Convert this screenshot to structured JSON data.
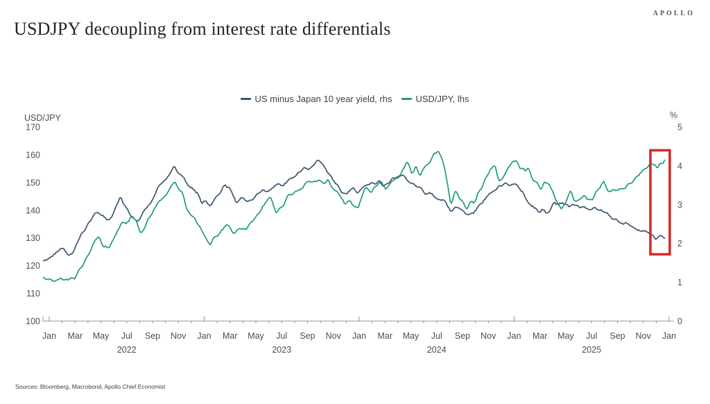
{
  "header": {
    "title": "USDJPY decoupling from interest rate differentials",
    "logo": "APOLLO"
  },
  "source": "Sources: Bloomberg, Macrobond, Apollo Chief Economist",
  "chart_data": {
    "type": "line",
    "title": "USDJPY decoupling from interest rate differentials",
    "grid": false,
    "legend_position": "top-center",
    "left_axis": {
      "label": "USD/JPY",
      "min": 100,
      "max": 170,
      "ticks": [
        170,
        160,
        150,
        140,
        130,
        120,
        110,
        100
      ]
    },
    "right_axis": {
      "label": "%",
      "min": 0,
      "max": 5,
      "ticks": [
        5,
        4,
        3,
        2,
        1,
        0
      ]
    },
    "x_axis": {
      "start": "Jan 2022",
      "end": "Jan 2026",
      "month_labels": [
        {
          "t": 0,
          "label": "Jan"
        },
        {
          "t": 2,
          "label": "Mar"
        },
        {
          "t": 4,
          "label": "May"
        },
        {
          "t": 6,
          "label": "Jul"
        },
        {
          "t": 8,
          "label": "Sep"
        },
        {
          "t": 10,
          "label": "Nov"
        },
        {
          "t": 12,
          "label": "Jan"
        },
        {
          "t": 14,
          "label": "Mar"
        },
        {
          "t": 16,
          "label": "May"
        },
        {
          "t": 18,
          "label": "Jul"
        },
        {
          "t": 20,
          "label": "Sep"
        },
        {
          "t": 22,
          "label": "Nov"
        },
        {
          "t": 24,
          "label": "Jan"
        },
        {
          "t": 26,
          "label": "Mar"
        },
        {
          "t": 28,
          "label": "May"
        },
        {
          "t": 30,
          "label": "Jul"
        },
        {
          "t": 32,
          "label": "Sep"
        },
        {
          "t": 34,
          "label": "Nov"
        },
        {
          "t": 36,
          "label": "Jan"
        },
        {
          "t": 38,
          "label": "Mar"
        },
        {
          "t": 40,
          "label": "May"
        },
        {
          "t": 42,
          "label": "Jul"
        },
        {
          "t": 44,
          "label": "Sep"
        },
        {
          "t": 46,
          "label": "Nov"
        },
        {
          "t": 48,
          "label": "Jan"
        }
      ],
      "year_labels": [
        {
          "t": 6,
          "label": "2022"
        },
        {
          "t": 18,
          "label": "2023"
        },
        {
          "t": 30,
          "label": "2024"
        },
        {
          "t": 42,
          "label": "2025"
        }
      ]
    },
    "legend": [
      {
        "label": "US minus Japan 10 year yield, rhs",
        "color": "#3e5471"
      },
      {
        "label": "USD/JPY, lhs",
        "color": "#1d9b77"
      }
    ],
    "series": [
      {
        "name": "US minus Japan 10 year yield",
        "axis": "rhs",
        "color": "#3e5471",
        "unit": "%",
        "points": [
          [
            -0.45,
            1.55
          ],
          [
            0,
            1.62
          ],
          [
            0.4,
            1.72
          ],
          [
            0.8,
            1.85
          ],
          [
            1.1,
            1.9
          ],
          [
            1.5,
            1.72
          ],
          [
            1.9,
            1.75
          ],
          [
            2.2,
            2.05
          ],
          [
            2.6,
            2.25
          ],
          [
            3.0,
            2.55
          ],
          [
            3.4,
            2.72
          ],
          [
            3.8,
            2.82
          ],
          [
            4.1,
            2.75
          ],
          [
            4.5,
            2.58
          ],
          [
            4.9,
            2.72
          ],
          [
            5.3,
            3.05
          ],
          [
            5.5,
            3.22
          ],
          [
            5.9,
            2.95
          ],
          [
            6.2,
            2.78
          ],
          [
            6.6,
            2.58
          ],
          [
            7.0,
            2.65
          ],
          [
            7.4,
            2.85
          ],
          [
            7.8,
            3.05
          ],
          [
            8.2,
            3.28
          ],
          [
            8.6,
            3.52
          ],
          [
            9.0,
            3.62
          ],
          [
            9.4,
            3.85
          ],
          [
            9.7,
            3.98
          ],
          [
            10.0,
            3.82
          ],
          [
            10.4,
            3.72
          ],
          [
            10.7,
            3.52
          ],
          [
            11.1,
            3.42
          ],
          [
            11.5,
            3.28
          ],
          [
            11.8,
            3.02
          ],
          [
            12.1,
            3.12
          ],
          [
            12.4,
            2.98
          ],
          [
            12.8,
            3.08
          ],
          [
            13.2,
            3.32
          ],
          [
            13.6,
            3.52
          ],
          [
            13.9,
            3.42
          ],
          [
            14.2,
            3.25
          ],
          [
            14.5,
            3.02
          ],
          [
            14.9,
            3.18
          ],
          [
            15.3,
            3.05
          ],
          [
            15.7,
            3.12
          ],
          [
            16.1,
            3.22
          ],
          [
            16.5,
            3.38
          ],
          [
            16.9,
            3.32
          ],
          [
            17.3,
            3.42
          ],
          [
            17.7,
            3.52
          ],
          [
            18.1,
            3.48
          ],
          [
            18.5,
            3.62
          ],
          [
            18.9,
            3.72
          ],
          [
            19.3,
            3.82
          ],
          [
            19.7,
            3.92
          ],
          [
            20.1,
            3.88
          ],
          [
            20.5,
            4.02
          ],
          [
            20.8,
            4.12
          ],
          [
            21.2,
            3.98
          ],
          [
            21.6,
            3.82
          ],
          [
            21.9,
            3.68
          ],
          [
            22.3,
            3.48
          ],
          [
            22.7,
            3.32
          ],
          [
            23.1,
            3.28
          ],
          [
            23.5,
            3.42
          ],
          [
            23.9,
            3.32
          ],
          [
            24.3,
            3.42
          ],
          [
            24.7,
            3.55
          ],
          [
            25.1,
            3.52
          ],
          [
            25.5,
            3.58
          ],
          [
            25.9,
            3.48
          ],
          [
            26.3,
            3.55
          ],
          [
            26.7,
            3.68
          ],
          [
            27.1,
            3.78
          ],
          [
            27.5,
            3.72
          ],
          [
            27.9,
            3.58
          ],
          [
            28.3,
            3.52
          ],
          [
            28.7,
            3.42
          ],
          [
            29.1,
            3.32
          ],
          [
            29.5,
            3.28
          ],
          [
            29.9,
            3.22
          ],
          [
            30.3,
            3.15
          ],
          [
            30.7,
            3.05
          ],
          [
            31.1,
            2.82
          ],
          [
            31.4,
            2.95
          ],
          [
            31.8,
            2.88
          ],
          [
            32.2,
            2.78
          ],
          [
            32.5,
            2.72
          ],
          [
            32.9,
            2.82
          ],
          [
            33.3,
            2.98
          ],
          [
            33.7,
            3.12
          ],
          [
            34.1,
            3.28
          ],
          [
            34.5,
            3.38
          ],
          [
            34.9,
            3.48
          ],
          [
            35.3,
            3.55
          ],
          [
            35.7,
            3.48
          ],
          [
            36.1,
            3.52
          ],
          [
            36.4,
            3.42
          ],
          [
            36.8,
            3.22
          ],
          [
            37.2,
            3.05
          ],
          [
            37.6,
            2.88
          ],
          [
            37.9,
            2.78
          ],
          [
            38.2,
            2.88
          ],
          [
            38.5,
            2.78
          ],
          [
            38.8,
            2.82
          ],
          [
            39.1,
            3.08
          ],
          [
            39.4,
            3.02
          ],
          [
            39.8,
            3.05
          ],
          [
            40.2,
            2.98
          ],
          [
            40.6,
            3.02
          ],
          [
            41.0,
            2.92
          ],
          [
            41.4,
            2.95
          ],
          [
            41.8,
            2.88
          ],
          [
            42.2,
            2.92
          ],
          [
            42.6,
            2.85
          ],
          [
            43.0,
            2.78
          ],
          [
            43.4,
            2.72
          ],
          [
            43.8,
            2.62
          ],
          [
            44.2,
            2.55
          ],
          [
            44.6,
            2.5
          ],
          [
            45.0,
            2.45
          ],
          [
            45.4,
            2.38
          ],
          [
            45.8,
            2.32
          ],
          [
            46.2,
            2.35
          ],
          [
            46.6,
            2.25
          ],
          [
            47.0,
            2.12
          ],
          [
            47.3,
            2.2
          ],
          [
            47.65,
            2.15
          ]
        ]
      },
      {
        "name": "USD/JPY",
        "axis": "lhs",
        "color": "#1d9b77",
        "unit": "JPY per USD",
        "points": [
          [
            -0.45,
            115.6
          ],
          [
            0,
            115.0
          ],
          [
            0.3,
            114.2
          ],
          [
            0.8,
            115.3
          ],
          [
            1.2,
            114.8
          ],
          [
            1.7,
            115.2
          ],
          [
            2.0,
            115.0
          ],
          [
            2.3,
            118.5
          ],
          [
            2.8,
            121.8
          ],
          [
            3.2,
            125.5
          ],
          [
            3.6,
            129.2
          ],
          [
            3.9,
            129.9
          ],
          [
            4.2,
            127.2
          ],
          [
            4.6,
            126.8
          ],
          [
            4.9,
            128.7
          ],
          [
            5.3,
            133.0
          ],
          [
            5.6,
            135.0
          ],
          [
            6.1,
            135.8
          ],
          [
            6.4,
            138.0
          ],
          [
            6.7,
            136.0
          ],
          [
            7.1,
            131.8
          ],
          [
            7.4,
            133.4
          ],
          [
            7.8,
            137.5
          ],
          [
            8.1,
            140.2
          ],
          [
            8.5,
            143.8
          ],
          [
            8.9,
            144.7
          ],
          [
            9.3,
            147.5
          ],
          [
            9.7,
            150.2
          ],
          [
            10.0,
            147.5
          ],
          [
            10.3,
            146.8
          ],
          [
            10.6,
            140.5
          ],
          [
            10.9,
            138.8
          ],
          [
            11.3,
            136.5
          ],
          [
            11.6,
            134.3
          ],
          [
            11.9,
            131.5
          ],
          [
            12.2,
            128.9
          ],
          [
            12.5,
            127.9
          ],
          [
            12.9,
            130.2
          ],
          [
            13.3,
            132.5
          ],
          [
            13.7,
            134.8
          ],
          [
            14.1,
            132.9
          ],
          [
            14.4,
            131.2
          ],
          [
            14.8,
            133.3
          ],
          [
            15.2,
            133.5
          ],
          [
            15.6,
            135.5
          ],
          [
            16.0,
            137.4
          ],
          [
            16.4,
            139.8
          ],
          [
            16.8,
            143.2
          ],
          [
            17.1,
            144.8
          ],
          [
            17.4,
            141.2
          ],
          [
            17.6,
            138.3
          ],
          [
            17.9,
            141.3
          ],
          [
            18.3,
            143.2
          ],
          [
            18.6,
            145.8
          ],
          [
            19.0,
            146.2
          ],
          [
            19.4,
            147.6
          ],
          [
            19.8,
            149.4
          ],
          [
            20.2,
            149.8
          ],
          [
            20.6,
            150.3
          ],
          [
            20.9,
            151.2
          ],
          [
            21.3,
            149.8
          ],
          [
            21.6,
            151.6
          ],
          [
            21.9,
            148.2
          ],
          [
            22.2,
            147.2
          ],
          [
            22.6,
            144.5
          ],
          [
            22.9,
            142.0
          ],
          [
            23.3,
            143.8
          ],
          [
            23.6,
            141.5
          ],
          [
            23.9,
            141.0
          ],
          [
            24.2,
            144.7
          ],
          [
            24.5,
            148.2
          ],
          [
            24.9,
            146.5
          ],
          [
            25.3,
            149.3
          ],
          [
            25.7,
            150.5
          ],
          [
            26.1,
            147.0
          ],
          [
            26.5,
            150.9
          ],
          [
            26.9,
            151.3
          ],
          [
            27.3,
            153.8
          ],
          [
            27.7,
            157.8
          ],
          [
            27.9,
            156.2
          ],
          [
            28.1,
            153.1
          ],
          [
            28.4,
            155.8
          ],
          [
            28.7,
            152.3
          ],
          [
            29.0,
            155.0
          ],
          [
            29.4,
            157.2
          ],
          [
            29.8,
            160.5
          ],
          [
            30.1,
            161.5
          ],
          [
            30.4,
            158.8
          ],
          [
            30.7,
            153.7
          ],
          [
            31.1,
            142.2
          ],
          [
            31.4,
            147.2
          ],
          [
            31.7,
            144.8
          ],
          [
            32.0,
            143.0
          ],
          [
            32.3,
            140.5
          ],
          [
            32.6,
            143.8
          ],
          [
            32.9,
            142.2
          ],
          [
            33.2,
            146.3
          ],
          [
            33.6,
            149.5
          ],
          [
            33.9,
            152.3
          ],
          [
            34.2,
            154.6
          ],
          [
            34.5,
            156.5
          ],
          [
            34.8,
            150.0
          ],
          [
            35.1,
            151.0
          ],
          [
            35.5,
            154.8
          ],
          [
            35.9,
            157.5
          ],
          [
            36.2,
            157.8
          ],
          [
            36.5,
            155.4
          ],
          [
            36.8,
            154.3
          ],
          [
            37.1,
            155.3
          ],
          [
            37.5,
            150.8
          ],
          [
            37.8,
            149.2
          ],
          [
            38.1,
            147.5
          ],
          [
            38.4,
            150.5
          ],
          [
            38.7,
            149.5
          ],
          [
            39.1,
            145.8
          ],
          [
            39.4,
            142.5
          ],
          [
            39.7,
            140.3
          ],
          [
            40.0,
            143.2
          ],
          [
            40.4,
            148.0
          ],
          [
            40.7,
            142.9
          ],
          [
            41.0,
            143.5
          ],
          [
            41.4,
            145.2
          ],
          [
            41.8,
            143.9
          ],
          [
            42.1,
            144.5
          ],
          [
            42.5,
            146.8
          ],
          [
            42.9,
            150.3
          ],
          [
            43.2,
            147.5
          ],
          [
            43.5,
            147.1
          ],
          [
            43.9,
            147.0
          ],
          [
            44.2,
            148.4
          ],
          [
            44.6,
            147.5
          ],
          [
            44.9,
            149.4
          ],
          [
            45.2,
            150.5
          ],
          [
            45.6,
            152.8
          ],
          [
            45.9,
            154.0
          ],
          [
            46.2,
            154.8
          ],
          [
            46.6,
            157.3
          ],
          [
            46.9,
            156.3
          ],
          [
            47.1,
            155.4
          ],
          [
            47.3,
            157.4
          ],
          [
            47.5,
            156.8
          ],
          [
            47.65,
            157.9
          ]
        ]
      }
    ],
    "annotation_box": {
      "description": "red rectangle highlighting the latest divergence",
      "color": "#d32c2c",
      "t_start": 46.55,
      "t_end": 48.05,
      "rhs_min": 1.72,
      "rhs_max": 4.4
    }
  }
}
